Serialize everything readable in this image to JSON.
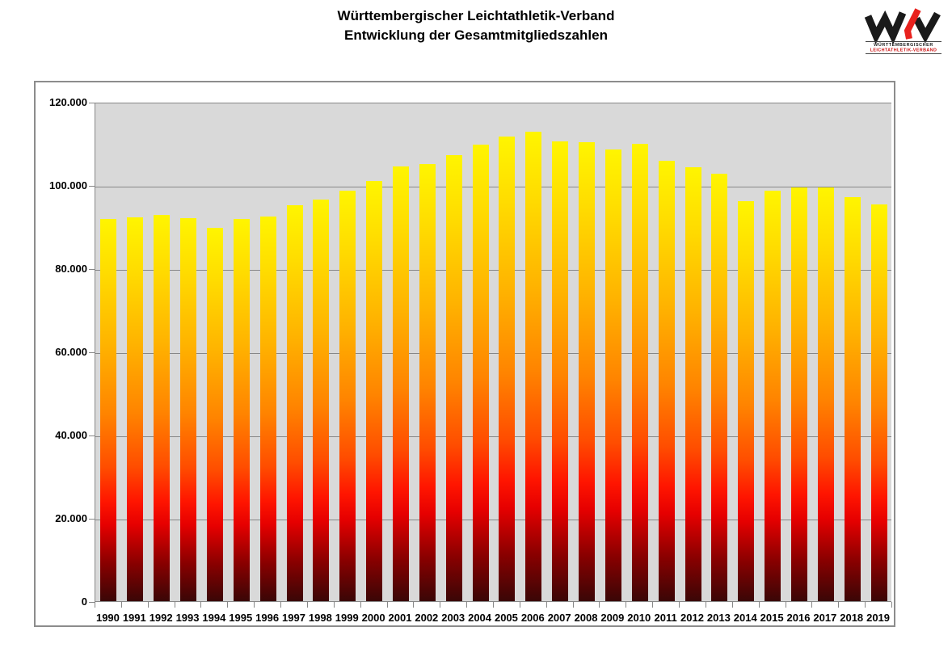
{
  "header": {
    "title_line1": "Württembergischer Leichtathletik-Verband",
    "title_line2": "Entwicklung der Gesamtmitgliedszahlen"
  },
  "logo": {
    "letters": "WLV",
    "sub_line1": "WÜRTTEMBERGISCHER",
    "sub_line2": "LEICHTATHLETIK-VERBAND",
    "accent_color": "#e8211d",
    "text_color": "#1a1a1a"
  },
  "chart_data": {
    "type": "bar",
    "title": "Württembergischer Leichtathletik-Verband – Entwicklung der Gesamtmitgliedszahlen",
    "xlabel": "",
    "ylabel": "",
    "ylim": [
      0,
      120000
    ],
    "ytick_interval": 20000,
    "ytick_labels": [
      "120.000",
      "100.000",
      "80.000",
      "60.000",
      "40.000",
      "20.000",
      "0"
    ],
    "grid": true,
    "legend": "none",
    "plot_bg_color": "#d9d9d9",
    "gridline_color": "#878787",
    "bar_gradient": [
      "#fff500",
      "#ff8400",
      "#ff0000",
      "#3a0606"
    ],
    "categories": [
      "1990",
      "1991",
      "1992",
      "1993",
      "1994",
      "1995",
      "1996",
      "1997",
      "1998",
      "1999",
      "2000",
      "2001",
      "2002",
      "2003",
      "2004",
      "2005",
      "2006",
      "2007",
      "2008",
      "2009",
      "2010",
      "2011",
      "2012",
      "2013",
      "2014",
      "2015",
      "2016",
      "2017",
      "2018",
      "2019"
    ],
    "values": [
      91900,
      92200,
      92800,
      92000,
      89700,
      91900,
      92500,
      95100,
      96500,
      98600,
      101000,
      104400,
      105100,
      107200,
      109700,
      111700,
      112900,
      110400,
      110300,
      108500,
      109900,
      105900,
      104300,
      102800,
      96200,
      98600,
      99500,
      99400,
      97100,
      95400
    ]
  }
}
